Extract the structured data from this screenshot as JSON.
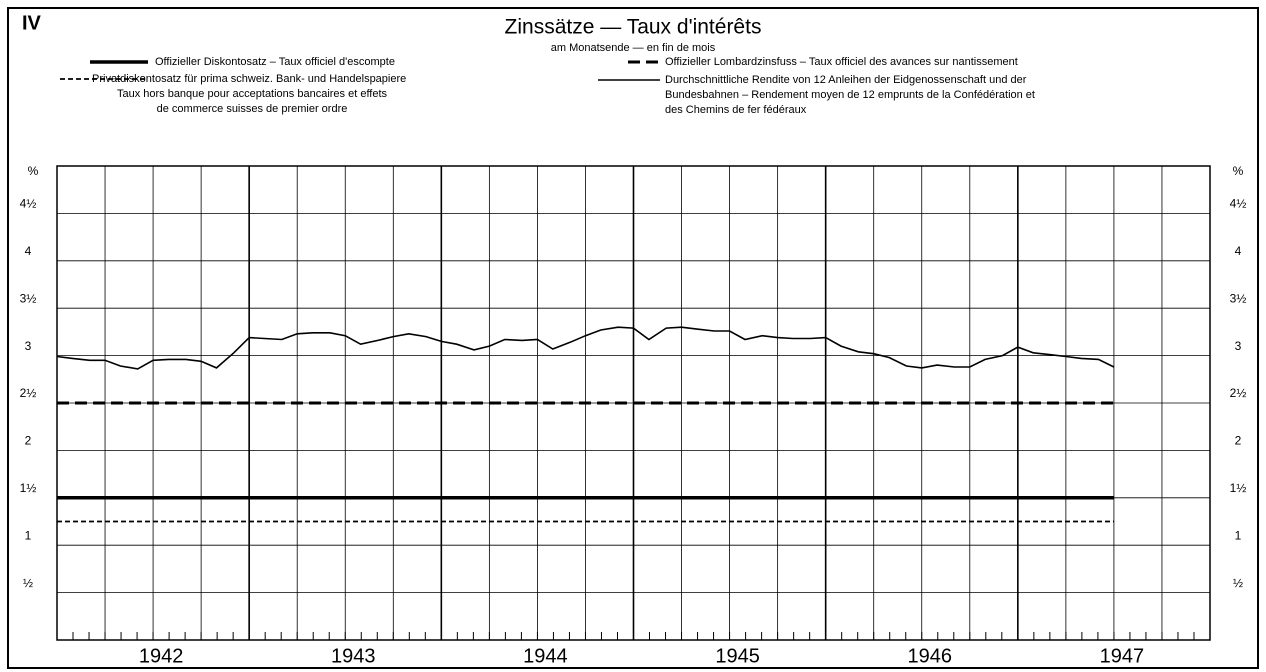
{
  "chart_data": {
    "type": "line",
    "label": "IV",
    "title": "Zinssätze — Taux d'intérêts",
    "subtitle": "am Monatsende — en fin de mois",
    "y_label": "%",
    "xlim": [
      1942,
      1948
    ],
    "xticks": [
      1942,
      1943,
      1944,
      1945,
      1946,
      1947
    ],
    "ylim": [
      0,
      5
    ],
    "yticks": [
      {
        "value": 0.5,
        "label": "½"
      },
      1,
      {
        "value": 1.5,
        "label": "1½"
      },
      2,
      {
        "value": 2.5,
        "label": "2½"
      },
      3,
      {
        "value": 3.5,
        "label": "3½"
      },
      4,
      {
        "value": 4.5,
        "label": "4½"
      }
    ],
    "grid": true,
    "series": [
      {
        "name": "Offizieller Diskontosatz – Taux officiel d'escompte",
        "color": "#000000",
        "line_style": "solid",
        "line_width": 3.5,
        "x": [
          1942,
          1947.5
        ],
        "values": [
          1.5,
          1.5
        ]
      },
      {
        "name": "Offizieller Lombardzinsfuss – Taux officiel des avances sur nantissement",
        "color": "#000000",
        "line_style": "dashed",
        "line_width": 3,
        "x": [
          1942,
          1947.5
        ],
        "values": [
          2.5,
          2.5
        ]
      },
      {
        "name": "Privatdiskontosatz für prima schweiz. Bank- und Handelspapiere\nTaux hors banque pour acceptations bancaires et effets\nde commerce suisses de premier ordre",
        "color": "#000000",
        "line_style": "dotted",
        "line_width": 1.8,
        "x": [
          1942,
          1947.5
        ],
        "values": [
          1.25,
          1.25
        ]
      },
      {
        "name": "Durchschnittliche Rendite von 12 Anleihen der Eidgenossenschaft und der\nBundesbahnen – Rendement moyen de 12 emprunts de la Confédération et\ndes Chemins de fer fédéraux",
        "color": "#000000",
        "line_style": "solid",
        "line_width": 1.6,
        "x": [
          1942,
          1942.08,
          1942.17,
          1942.25,
          1942.33,
          1942.42,
          1942.5,
          1942.58,
          1942.67,
          1942.75,
          1942.83,
          1942.92,
          1943,
          1943.08,
          1943.17,
          1943.25,
          1943.33,
          1943.42,
          1943.5,
          1943.58,
          1943.67,
          1943.75,
          1943.83,
          1943.92,
          1944,
          1944.08,
          1944.17,
          1944.25,
          1944.33,
          1944.42,
          1944.5,
          1944.58,
          1944.67,
          1944.75,
          1944.83,
          1944.92,
          1945,
          1945.08,
          1945.17,
          1945.25,
          1945.33,
          1945.42,
          1945.5,
          1945.58,
          1945.67,
          1945.75,
          1945.83,
          1945.92,
          1946,
          1946.08,
          1946.17,
          1946.25,
          1946.33,
          1946.42,
          1946.5,
          1946.58,
          1946.67,
          1946.75,
          1946.83,
          1946.92,
          1947,
          1947.08,
          1947.17,
          1947.25,
          1947.33,
          1947.42,
          1947.5
        ],
        "values": [
          2.99,
          2.97,
          2.95,
          2.95,
          2.89,
          2.86,
          2.95,
          2.96,
          2.96,
          2.94,
          2.87,
          3.03,
          3.19,
          3.18,
          3.17,
          3.23,
          3.24,
          3.24,
          3.21,
          3.12,
          3.16,
          3.2,
          3.23,
          3.2,
          3.15,
          3.12,
          3.06,
          3.1,
          3.17,
          3.16,
          3.17,
          3.07,
          3.14,
          3.21,
          3.27,
          3.3,
          3.29,
          3.17,
          3.29,
          3.3,
          3.28,
          3.26,
          3.26,
          3.17,
          3.21,
          3.19,
          3.18,
          3.18,
          3.19,
          3.1,
          3.04,
          3.02,
          2.98,
          2.89,
          2.87,
          2.9,
          2.88,
          2.88,
          2.96,
          3.0,
          3.09,
          3.03,
          3.01,
          2.99,
          2.97,
          2.96,
          2.88
        ]
      }
    ]
  }
}
